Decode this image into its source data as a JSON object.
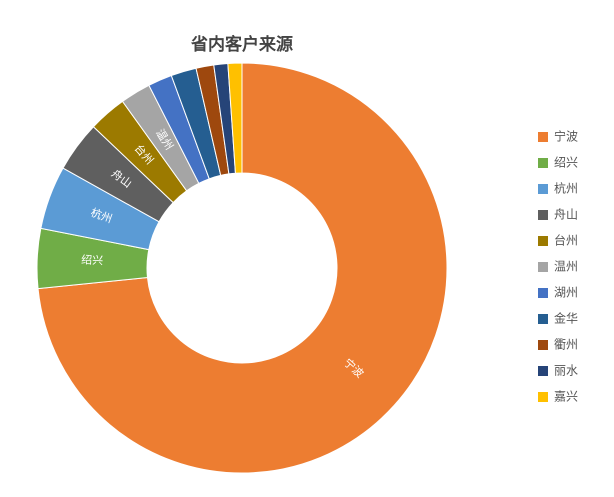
{
  "chart_data": {
    "type": "donut",
    "title": "省内客户来源",
    "categories": [
      "宁波",
      "绍兴",
      "杭州",
      "舟山",
      "台州",
      "温州",
      "湖州",
      "金华",
      "衢州",
      "丽水",
      "嘉兴"
    ],
    "values": [
      73.4,
      4.7,
      5,
      4,
      3,
      2.4,
      1.9,
      2,
      1.4,
      1.1,
      1.1
    ],
    "colors": [
      "#ed7d31",
      "#70ad47",
      "#5b9bd5",
      "#5f5f5f",
      "#9c7a00",
      "#a5a5a5",
      "#4472c4",
      "#255e91",
      "#9e480e",
      "#264478",
      "#ffc000"
    ],
    "label_min": 2.4,
    "legend": "right"
  }
}
